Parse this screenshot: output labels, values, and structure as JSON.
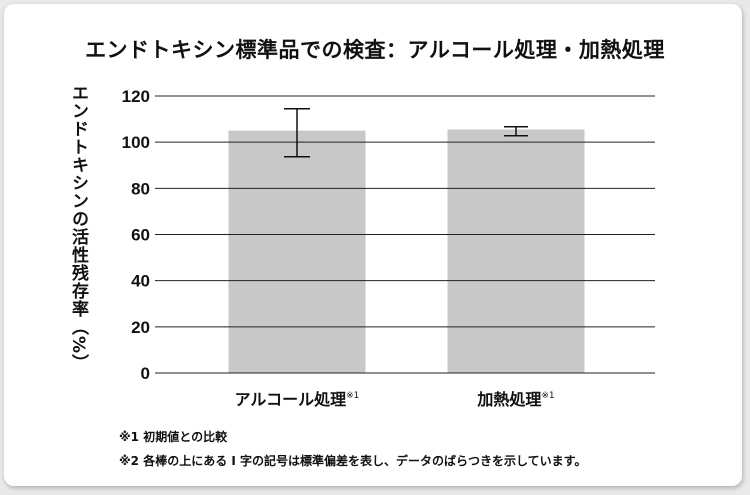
{
  "chart_data": {
    "type": "bar",
    "title": "エンドトキシン標準品での検査：アルコール処理・加熱処理",
    "ylabel": "エンドトキシンの活性残存率（%）",
    "xlabel": "",
    "categories": [
      "アルコール処理",
      "加熱処理"
    ],
    "category_marks": [
      "※1",
      "※1"
    ],
    "values": [
      105,
      105.5
    ],
    "error_bars": [
      [
        93.7,
        114.5
      ],
      [
        102.8,
        106.7
      ]
    ],
    "ylim": [
      0,
      120
    ],
    "yticks": [
      0,
      20,
      40,
      60,
      80,
      100,
      120
    ],
    "grid": true,
    "bar_color": "#c8c8c9"
  },
  "notes": [
    "※1 初期値との比較",
    "※2 各棒の上にある I 字の記号は標準偏差を表し、データのばらつきを示しています。"
  ]
}
